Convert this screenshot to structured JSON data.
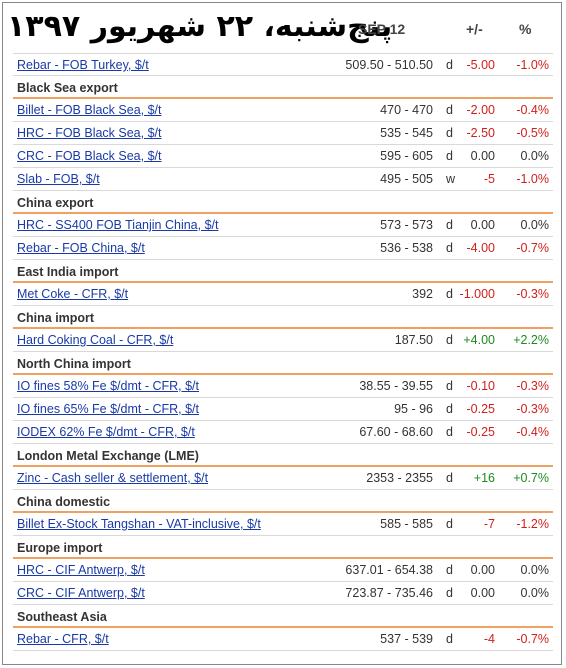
{
  "header": {
    "persian_date": "پنج‌شنبه، ۲۲ شهریور ۱۳۹۷",
    "date_col": "SEP 12",
    "change_col": "+/-",
    "percent_col": "%"
  },
  "colors": {
    "negative": "#d0201c",
    "positive": "#1e8a1e",
    "link": "#1a3aa8",
    "group_rule": "#f0a060"
  },
  "rows": [
    {
      "kind": "item",
      "name": "Rebar - FOB Turkey, $/t",
      "price": "509.50 - 510.50",
      "freq": "d",
      "chg": "-5.00",
      "pct": "-1.0%",
      "dir": "neg"
    },
    {
      "kind": "group",
      "label": "Black Sea export"
    },
    {
      "kind": "item",
      "name": "Billet - FOB Black Sea, $/t",
      "price": "470 - 470",
      "freq": "d",
      "chg": "-2.00",
      "pct": "-0.4%",
      "dir": "neg"
    },
    {
      "kind": "item",
      "name": "HRC - FOB Black Sea, $/t",
      "price": "535 - 545",
      "freq": "d",
      "chg": "-2.50",
      "pct": "-0.5%",
      "dir": "neg"
    },
    {
      "kind": "item",
      "name": "CRC - FOB Black Sea, $/t",
      "price": "595 - 605",
      "freq": "d",
      "chg": "0.00",
      "pct": "0.0%",
      "dir": "zero"
    },
    {
      "kind": "item",
      "name": "Slab - FOB, $/t",
      "price": "495 - 505",
      "freq": "w",
      "chg": "-5",
      "pct": "-1.0%",
      "dir": "neg"
    },
    {
      "kind": "group",
      "label": "China export"
    },
    {
      "kind": "item",
      "name": "HRC - SS400 FOB Tianjin China, $/t",
      "price": "573 - 573",
      "freq": "d",
      "chg": "0.00",
      "pct": "0.0%",
      "dir": "zero"
    },
    {
      "kind": "item",
      "name": "Rebar - FOB China, $/t",
      "price": "536 - 538",
      "freq": "d",
      "chg": "-4.00",
      "pct": "-0.7%",
      "dir": "neg"
    },
    {
      "kind": "group",
      "label": "East India import"
    },
    {
      "kind": "item",
      "name": "Met Coke - CFR, $/t",
      "price": "392",
      "freq": "d",
      "chg": "-1.000",
      "pct": "-0.3%",
      "dir": "neg"
    },
    {
      "kind": "group",
      "label": "China import"
    },
    {
      "kind": "item",
      "name": "Hard Coking Coal - CFR, $/t",
      "price": "187.50",
      "freq": "d",
      "chg": "+4.00",
      "pct": "+2.2%",
      "dir": "pos"
    },
    {
      "kind": "group",
      "label": "North China import"
    },
    {
      "kind": "item",
      "name": "IO fines 58% Fe $/dmt - CFR, $/t",
      "price": "38.55 - 39.55",
      "freq": "d",
      "chg": "-0.10",
      "pct": "-0.3%",
      "dir": "neg"
    },
    {
      "kind": "item",
      "name": "IO fines 65% Fe $/dmt - CFR, $/t",
      "price": "95 - 96",
      "freq": "d",
      "chg": "-0.25",
      "pct": "-0.3%",
      "dir": "neg"
    },
    {
      "kind": "item",
      "name": "IODEX 62% Fe $/dmt - CFR, $/t",
      "price": "67.60 - 68.60",
      "freq": "d",
      "chg": "-0.25",
      "pct": "-0.4%",
      "dir": "neg"
    },
    {
      "kind": "group",
      "label": "London Metal Exchange (LME)"
    },
    {
      "kind": "item",
      "name": "Zinc - Cash seller & settlement, $/t",
      "price": "2353 - 2355",
      "freq": "d",
      "chg": "+16",
      "pct": "+0.7%",
      "dir": "pos"
    },
    {
      "kind": "group",
      "label": "China domestic"
    },
    {
      "kind": "item",
      "name": "Billet Ex-Stock Tangshan - VAT-inclusive, $/t",
      "price": "585 - 585",
      "freq": "d",
      "chg": "-7",
      "pct": "-1.2%",
      "dir": "neg"
    },
    {
      "kind": "group",
      "label": "Europe import"
    },
    {
      "kind": "item",
      "name": "HRC - CIF Antwerp, $/t",
      "price": "637.01 - 654.38",
      "freq": "d",
      "chg": "0.00",
      "pct": "0.0%",
      "dir": "zero"
    },
    {
      "kind": "item",
      "name": "CRC - CIF Antwerp, $/t",
      "price": "723.87 - 735.46",
      "freq": "d",
      "chg": "0.00",
      "pct": "0.0%",
      "dir": "zero"
    },
    {
      "kind": "group",
      "label": "Southeast Asia"
    },
    {
      "kind": "item",
      "name": "Rebar - CFR, $/t",
      "price": "537 - 539",
      "freq": "d",
      "chg": "-4",
      "pct": "-0.7%",
      "dir": "neg"
    }
  ]
}
